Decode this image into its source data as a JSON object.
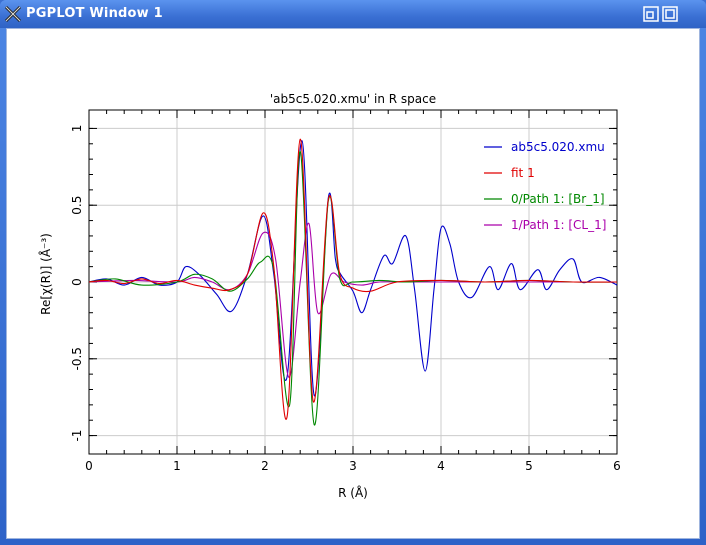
{
  "window": {
    "title": "PGPLOT Window 1",
    "controls": [
      "restore-icon",
      "maximize-icon"
    ]
  },
  "colors": {
    "titlebar": "#3a6fd3",
    "blue_series": "#0000cc",
    "red_series": "#e00000",
    "green_series": "#008800",
    "purple_series": "#aa00aa",
    "grid": "#cccccc"
  },
  "chart_data": {
    "type": "line",
    "title": "'ab5c5.020.xmu' in R space",
    "xlabel": "R (Å)",
    "ylabel": "Re[χ(R)] (Å⁻³)",
    "xlim": [
      0,
      6
    ],
    "ylim": [
      -1.12,
      1.12
    ],
    "xticks": [
      "0",
      "1",
      "2",
      "3",
      "4",
      "5",
      "6"
    ],
    "yticks": [
      "-1",
      "-0.5",
      "0",
      "0.5",
      "1"
    ],
    "grid": true,
    "legend_position": "top-right",
    "series": [
      {
        "name": "ab5c5.020.xmu",
        "color": "#0000cc",
        "x": [
          0,
          0.2,
          0.4,
          0.6,
          0.8,
          1.0,
          1.1,
          1.25,
          1.45,
          1.62,
          1.8,
          1.98,
          2.1,
          2.25,
          2.42,
          2.56,
          2.72,
          2.8,
          2.86,
          3.0,
          3.1,
          3.2,
          3.35,
          3.45,
          3.6,
          3.7,
          3.82,
          3.92,
          4.0,
          4.1,
          4.2,
          4.35,
          4.55,
          4.65,
          4.8,
          4.9,
          5.1,
          5.2,
          5.35,
          5.5,
          5.6,
          5.8,
          6.0
        ],
        "y": [
          0.0,
          0.02,
          -0.02,
          0.03,
          -0.02,
          0.0,
          0.1,
          0.05,
          -0.08,
          -0.19,
          0.05,
          0.43,
          0.05,
          -0.62,
          0.92,
          -0.74,
          0.55,
          0.15,
          0.05,
          -0.06,
          -0.2,
          -0.05,
          0.17,
          0.12,
          0.3,
          -0.05,
          -0.58,
          -0.05,
          0.35,
          0.25,
          0.0,
          -0.1,
          0.1,
          -0.05,
          0.12,
          -0.05,
          0.08,
          -0.05,
          0.08,
          0.15,
          0.0,
          0.03,
          -0.02
        ]
      },
      {
        "name": "fit 1",
        "color": "#e00000",
        "x": [
          0,
          0.2,
          0.4,
          0.6,
          0.8,
          1.0,
          1.2,
          1.4,
          1.6,
          1.8,
          1.98,
          2.1,
          2.25,
          2.4,
          2.55,
          2.72,
          2.85,
          3.0,
          3.2,
          3.5,
          4.0,
          4.5,
          5.0,
          5.5,
          6.0
        ],
        "y": [
          0.0,
          0.01,
          -0.01,
          0.02,
          -0.01,
          0.01,
          -0.02,
          -0.04,
          -0.05,
          0.05,
          0.45,
          0.1,
          -0.88,
          0.93,
          -0.78,
          0.54,
          0.05,
          -0.04,
          -0.06,
          0.0,
          0.01,
          0.0,
          0.01,
          0.0,
          0.0
        ]
      },
      {
        "name": "0/Path 1: [Br_1]",
        "color": "#008800",
        "x": [
          0,
          0.3,
          0.6,
          1.0,
          1.2,
          1.4,
          1.6,
          1.8,
          1.95,
          2.1,
          2.28,
          2.4,
          2.56,
          2.72,
          2.85,
          3.0,
          3.3,
          3.6,
          4.0,
          4.5,
          5.0,
          5.5,
          6.0
        ],
        "y": [
          0.0,
          0.02,
          -0.02,
          0.0,
          0.05,
          0.02,
          -0.06,
          0.02,
          0.13,
          0.08,
          -0.8,
          0.85,
          -0.93,
          0.53,
          0.02,
          0.0,
          0.01,
          0.0,
          0.01,
          0.0,
          0.01,
          0.0,
          0.0
        ]
      },
      {
        "name": "1/Path 1: [CL_1]",
        "color": "#aa00aa",
        "x": [
          0,
          0.5,
          1.0,
          1.2,
          1.4,
          1.6,
          1.8,
          1.98,
          2.12,
          2.27,
          2.4,
          2.5,
          2.6,
          2.75,
          2.9,
          3.1,
          3.3,
          3.6,
          4.0,
          5.0,
          6.0
        ],
        "y": [
          0.0,
          0.01,
          0.0,
          0.03,
          0.0,
          -0.05,
          0.05,
          0.32,
          0.15,
          -0.62,
          0.0,
          0.38,
          -0.2,
          0.05,
          0.0,
          -0.02,
          0.0,
          0.0,
          0.0,
          0.0,
          0.0
        ]
      }
    ]
  }
}
